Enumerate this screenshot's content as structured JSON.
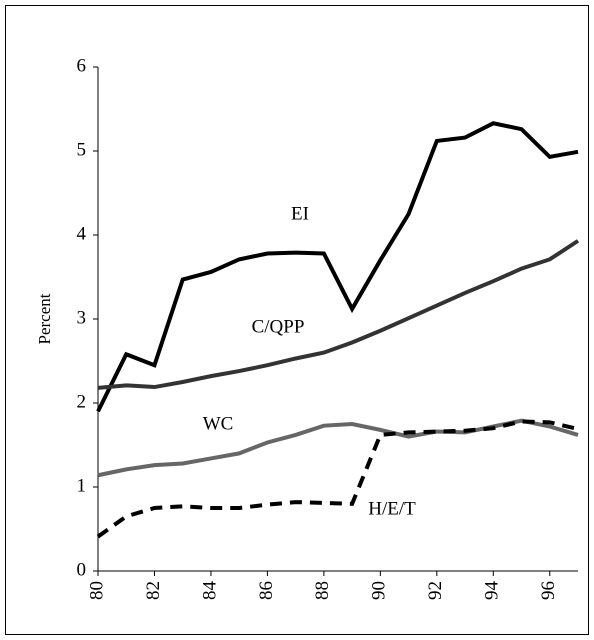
{
  "chart_data": {
    "type": "line",
    "y_label": "Percent",
    "x": [
      80,
      81,
      82,
      83,
      84,
      85,
      86,
      87,
      88,
      89,
      90,
      91,
      92,
      93,
      94,
      95,
      96,
      97
    ],
    "xlim": [
      80,
      97
    ],
    "xticks": [
      80,
      82,
      84,
      86,
      88,
      90,
      92,
      94,
      96
    ],
    "ylim": [
      0,
      6
    ],
    "yticks": [
      0,
      1,
      2,
      3,
      4,
      5,
      6
    ],
    "series": [
      {
        "name": "EI",
        "color": "#000000",
        "style": "solid",
        "values": [
          1.9,
          2.58,
          2.45,
          3.47,
          3.56,
          3.71,
          3.78,
          3.79,
          3.78,
          3.12,
          3.7,
          4.25,
          5.12,
          5.16,
          5.33,
          5.26,
          4.93,
          4.99
        ]
      },
      {
        "name": "C/QPP",
        "color": "#333333",
        "style": "solid",
        "values": [
          2.18,
          2.21,
          2.19,
          2.25,
          2.32,
          2.38,
          2.45,
          2.53,
          2.6,
          2.72,
          2.86,
          3.01,
          3.16,
          3.31,
          3.45,
          3.6,
          3.71,
          3.93
        ]
      },
      {
        "name": "WC",
        "color": "#666666",
        "style": "solid",
        "values": [
          1.14,
          1.21,
          1.26,
          1.28,
          1.34,
          1.4,
          1.53,
          1.62,
          1.73,
          1.75,
          1.68,
          1.6,
          1.66,
          1.65,
          1.72,
          1.79,
          1.72,
          1.62
        ]
      },
      {
        "name": "H/E/T",
        "color": "#000000",
        "style": "dashed",
        "values": [
          0.41,
          0.65,
          0.75,
          0.77,
          0.75,
          0.75,
          0.79,
          0.82,
          0.81,
          0.8,
          1.62,
          1.65,
          1.66,
          1.67,
          1.7,
          1.78,
          1.77,
          1.69
        ]
      }
    ]
  }
}
